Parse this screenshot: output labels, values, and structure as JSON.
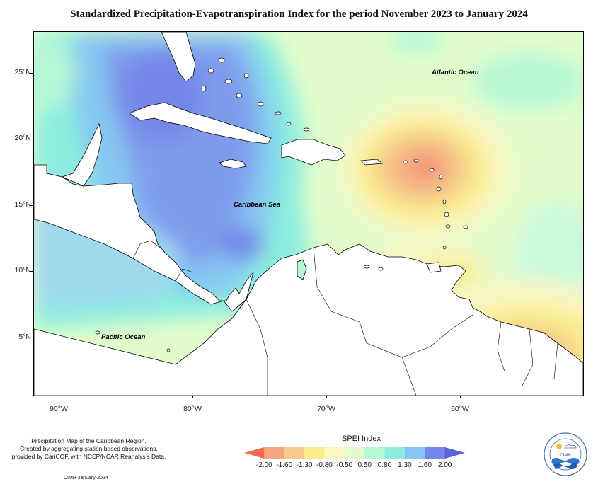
{
  "title": "Standardized Precipitation-Evapotranspiration Index for the period November 2023 to January 2024",
  "map": {
    "regions": {
      "atlantic": "Atlantic Ocean",
      "caribbean": "Caribbean Sea",
      "pacific": "Pacific Ocean"
    },
    "lat_labels": [
      "25°N",
      "20°N",
      "15°N",
      "10°N",
      "5°N"
    ],
    "lon_labels": [
      "90°W",
      "80°W",
      "70°W",
      "60°W"
    ]
  },
  "caption": {
    "line1": "Precipitation Map of the Caribbean Region.",
    "line2": "Created by aggregating station based observations,",
    "line3": "provided by CariCOF, with NCEP/NCAR Reanalysis Data."
  },
  "credit": "CIMH January-2024",
  "legend": {
    "title": "SPEI Index",
    "ticks": [
      "-2.00",
      "-1.60",
      "-1.30",
      "-0.80",
      "-0.50",
      "0.50",
      "0.80",
      "1.30",
      "1.60",
      "2.00"
    ],
    "colors": [
      "#ee6a50",
      "#f4a582",
      "#f7c98a",
      "#f8ec8c",
      "#fbf6c4",
      "#e2fccb",
      "#b6f7d6",
      "#8ceedf",
      "#86c6f1",
      "#7486e8",
      "#5a62d6"
    ]
  },
  "logo": {
    "text": "CIMH"
  }
}
